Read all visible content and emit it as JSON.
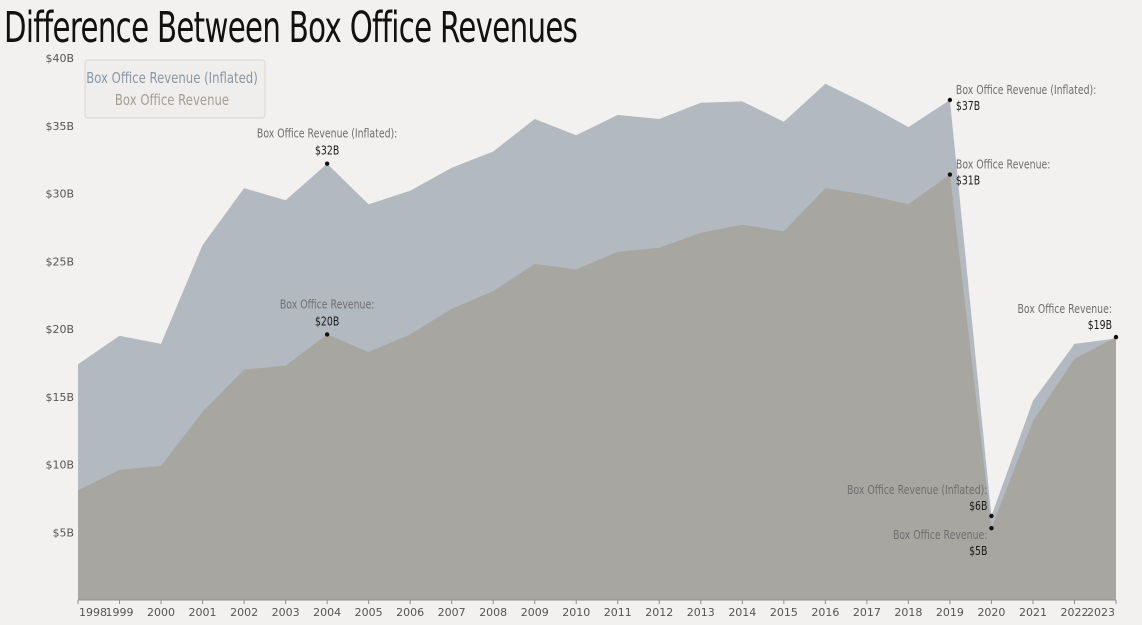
{
  "chart_data": {
    "type": "area",
    "title": "Difference Between Box Office Revenues",
    "xlabel": "",
    "ylabel": "",
    "x": [
      "1998",
      "1999",
      "2000",
      "2001",
      "2002",
      "2003",
      "2004",
      "2005",
      "2006",
      "2007",
      "2008",
      "2009",
      "2010",
      "2011",
      "2012",
      "2013",
      "2014",
      "2015",
      "2016",
      "2017",
      "2018",
      "2019",
      "2020",
      "2021",
      "2022",
      "2023"
    ],
    "ylim": [
      0,
      40
    ],
    "yticks": [
      5,
      10,
      15,
      20,
      25,
      30,
      35,
      40
    ],
    "ytick_labels": [
      "$5B",
      "$10B",
      "$15B",
      "$20B",
      "$25B",
      "$30B",
      "$35B",
      "$40B"
    ],
    "grid": false,
    "legend_position": "top-left",
    "series": [
      {
        "name": "Box Office Revenue (Inflated)",
        "color": "#b3b9c0",
        "legend_color": "#8a96a6",
        "values": [
          17.4,
          19.5,
          18.9,
          26.2,
          30.4,
          29.5,
          32.2,
          29.2,
          30.2,
          31.9,
          33.1,
          35.5,
          34.3,
          35.8,
          35.5,
          36.7,
          36.8,
          35.3,
          38.1,
          36.6,
          34.9,
          36.9,
          6.2,
          14.7,
          18.9,
          19.3
        ]
      },
      {
        "name": "Box Office Revenue",
        "color": "#a7a6a1",
        "legend_color": "#a59d93",
        "values": [
          8.1,
          9.6,
          9.9,
          13.9,
          17.0,
          17.3,
          19.6,
          18.3,
          19.6,
          21.5,
          22.8,
          24.8,
          24.4,
          25.7,
          26.0,
          27.1,
          27.7,
          27.2,
          30.4,
          29.9,
          29.2,
          31.4,
          5.3,
          13.2,
          17.8,
          19.4
        ]
      }
    ],
    "annotations": [
      {
        "series": 0,
        "x": "2004",
        "label": "Box Office Revenue (Inflated):",
        "value": "$32B"
      },
      {
        "series": 1,
        "x": "2004",
        "label": "Box Office Revenue:",
        "value": "$20B"
      },
      {
        "series": 0,
        "x": "2019",
        "label": "Box Office Revenue (Inflated):",
        "value": "$37B"
      },
      {
        "series": 1,
        "x": "2019",
        "label": "Box Office Revenue:",
        "value": "$31B"
      },
      {
        "series": 0,
        "x": "2020",
        "label": "Box Office Revenue (Inflated):",
        "value": "$6B"
      },
      {
        "series": 1,
        "x": "2020",
        "label": "Box Office Revenue:",
        "value": "$5B"
      },
      {
        "series": 1,
        "x": "2023",
        "label": "Box Office Revenue:",
        "value": "$19B"
      }
    ]
  }
}
